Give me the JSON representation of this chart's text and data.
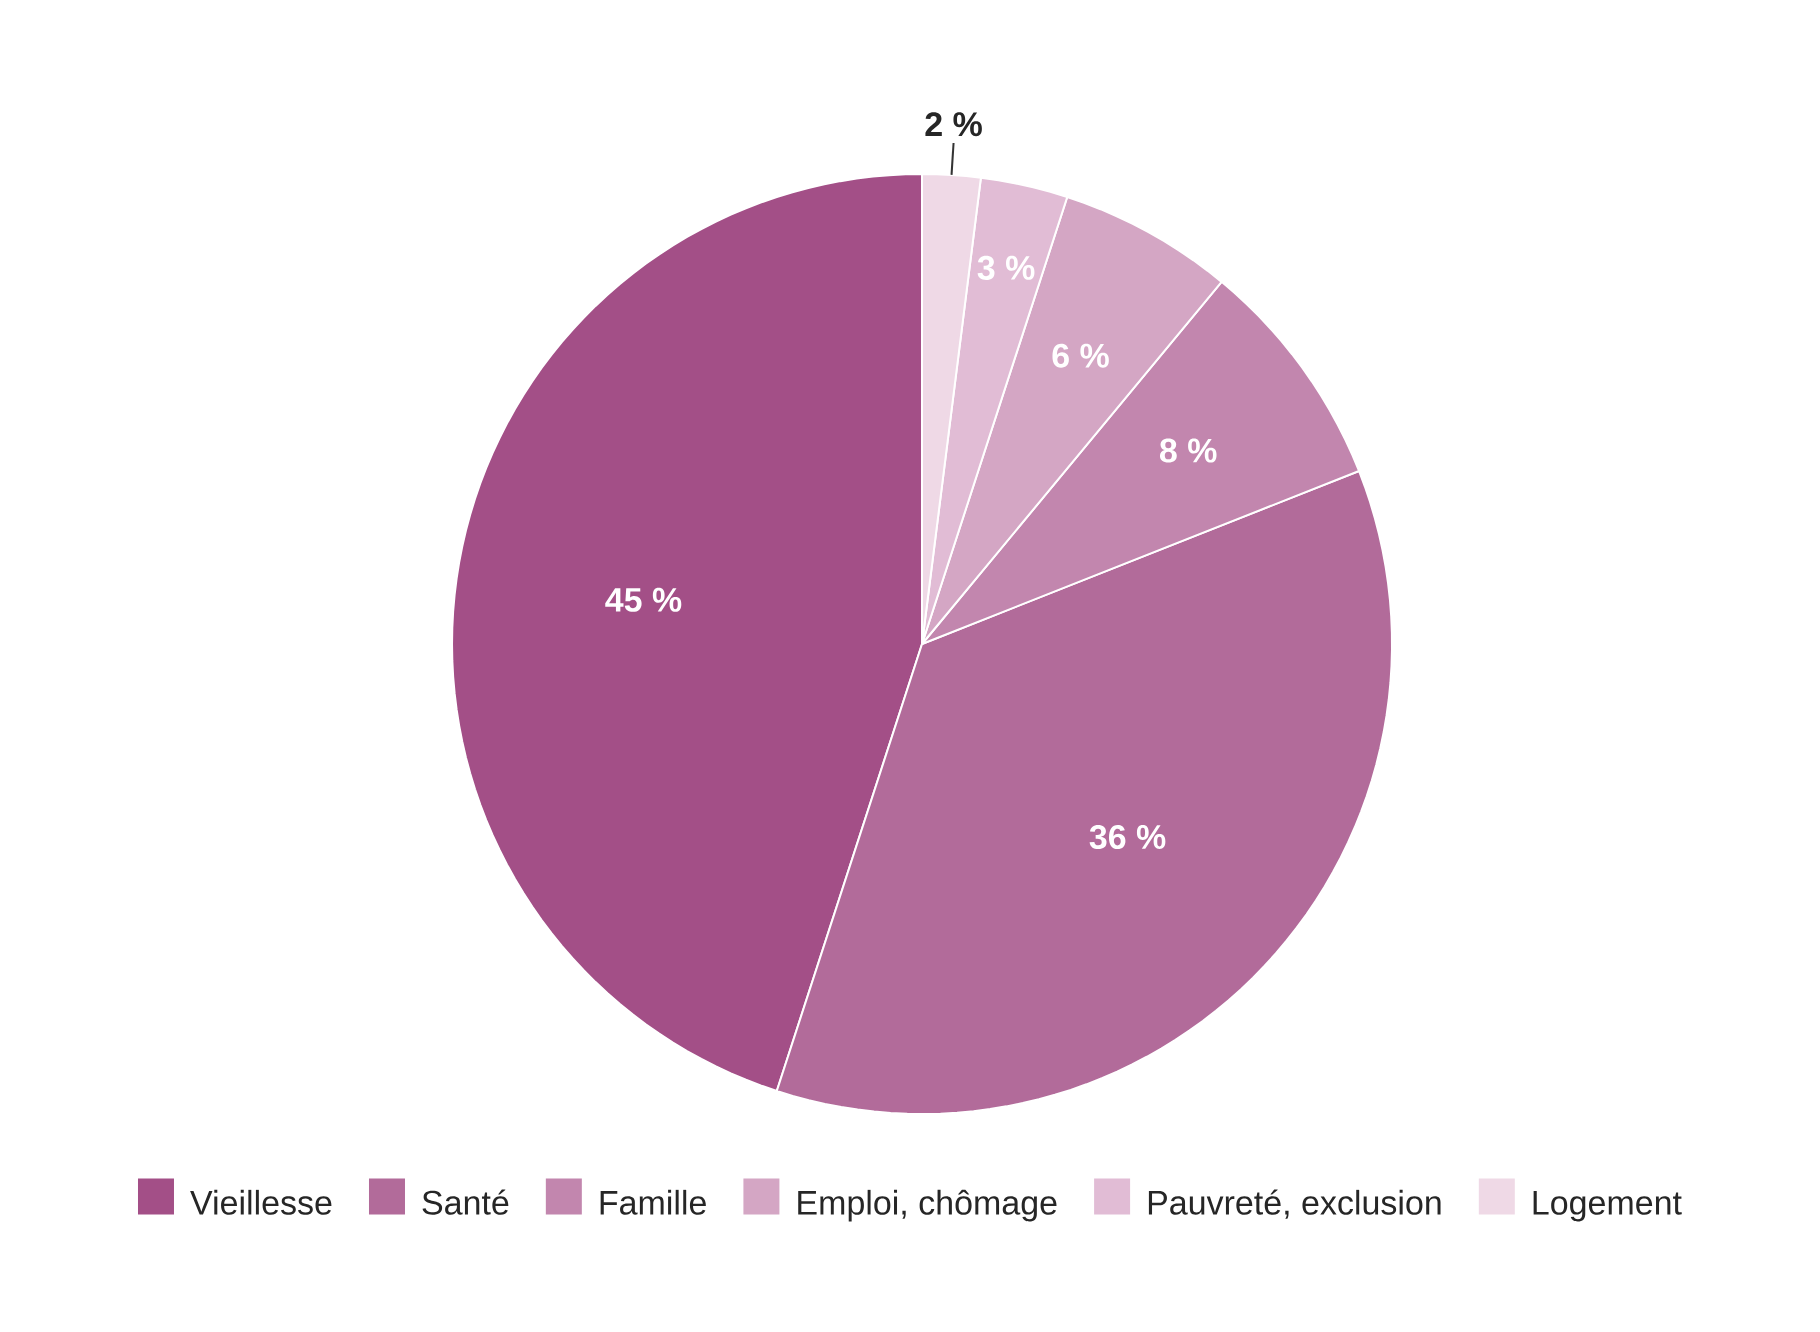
{
  "chart_data": {
    "type": "pie",
    "categories": [
      "Vieillesse",
      "Santé",
      "Famille",
      "Emploi, chômage",
      "Pauvreté, exclusion",
      "Logement"
    ],
    "values": [
      45,
      36,
      8,
      6,
      3,
      2
    ],
    "colors": [
      "#a34f87",
      "#b26b9a",
      "#c286ae",
      "#d4a6c4",
      "#e1bcd5",
      "#efd9e6"
    ],
    "value_labels": [
      "45 %",
      "36 %",
      "8 %",
      "6 %",
      "3 %",
      "2 %"
    ],
    "legend": "bottom"
  }
}
